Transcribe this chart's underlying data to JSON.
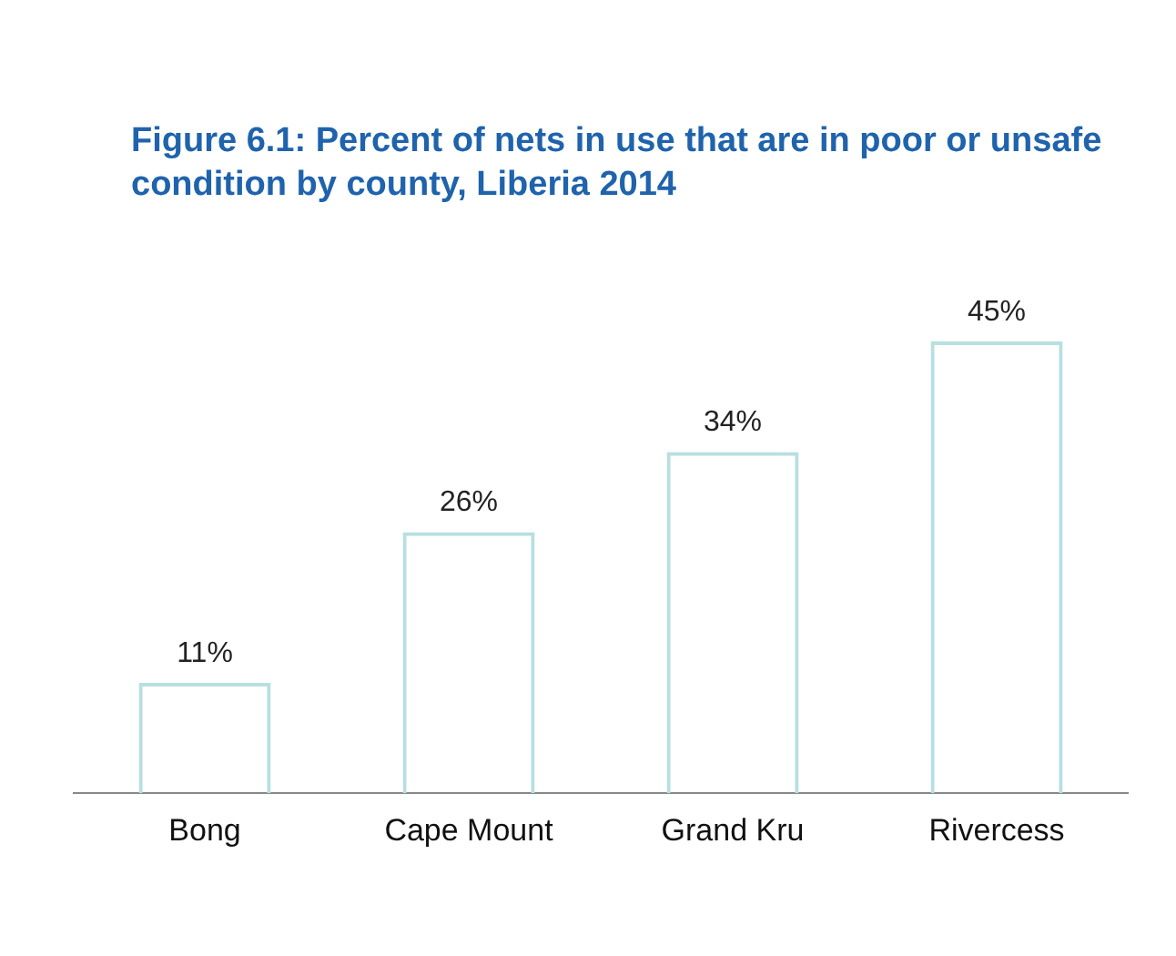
{
  "chart_data": {
    "type": "bar",
    "title": "Figure 6.1: Percent of nets in use that are in poor or unsafe condition by county, Liberia 2014",
    "categories": [
      "Bong",
      "Cape Mount",
      "Grand Kru",
      "Rivercess"
    ],
    "values": [
      11,
      26,
      34,
      45
    ],
    "value_labels": [
      "11%",
      "26%",
      "34%",
      "45%"
    ],
    "color": "#b7dfe0",
    "tick_labels": "x",
    "grid": false,
    "legend": false
  }
}
